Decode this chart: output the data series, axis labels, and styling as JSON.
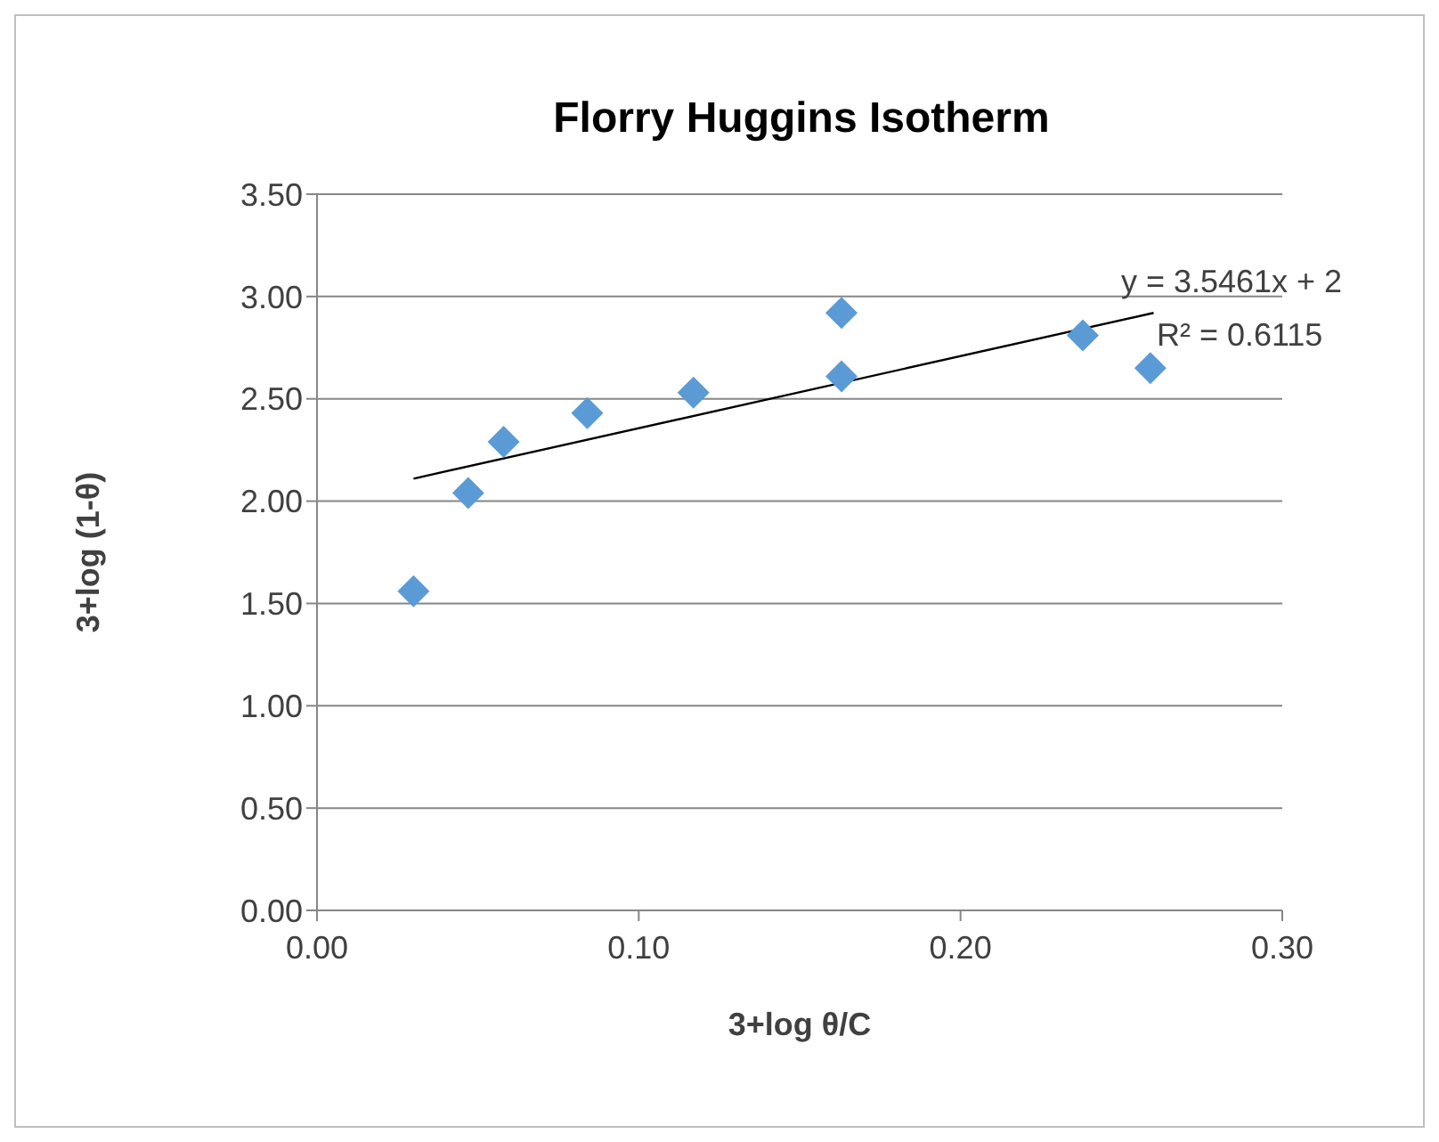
{
  "chart_data": {
    "type": "scatter",
    "title": "Florry Huggins Isotherm",
    "xlabel": "3+log θ/C",
    "ylabel": "3+log (1-θ)",
    "series": [
      {
        "color": "#5b9bd5",
        "marker": "diamond",
        "x": [
          0.03,
          0.047,
          0.058,
          0.084,
          0.117,
          0.163,
          0.163,
          0.238,
          0.259
        ],
        "values": [
          1.56,
          2.04,
          2.29,
          2.43,
          2.53,
          2.92,
          2.61,
          2.81,
          2.65
        ]
      },
      {
        "type": "line",
        "color": "#000000",
        "x": [
          0.03,
          0.26
        ],
        "values": [
          2.11,
          2.92
        ]
      }
    ],
    "annotations": [
      "y = 3.5461x + 2",
      "R² = 0.6115"
    ],
    "xlim": [
      0,
      0.3
    ],
    "xticks": [
      {
        "value": 0,
        "label": "0.00"
      },
      {
        "value": 0.1,
        "label": "0.10"
      },
      {
        "value": 0.2,
        "label": "0.20"
      },
      {
        "value": 0.3,
        "label": "0.30"
      }
    ],
    "ylim": [
      0,
      3.5
    ],
    "yticks": [
      {
        "value": 0,
        "label": "0.00"
      },
      {
        "value": 0.5,
        "label": "0.50"
      },
      {
        "value": 1,
        "label": "1.00"
      },
      {
        "value": 1.5,
        "label": "1.50"
      },
      {
        "value": 2,
        "label": "2.00"
      },
      {
        "value": 2.5,
        "label": "2.50"
      },
      {
        "value": 3,
        "label": "3.00"
      },
      {
        "value": 3.5,
        "label": "3.50"
      }
    ],
    "grid": "y",
    "legend": false
  }
}
